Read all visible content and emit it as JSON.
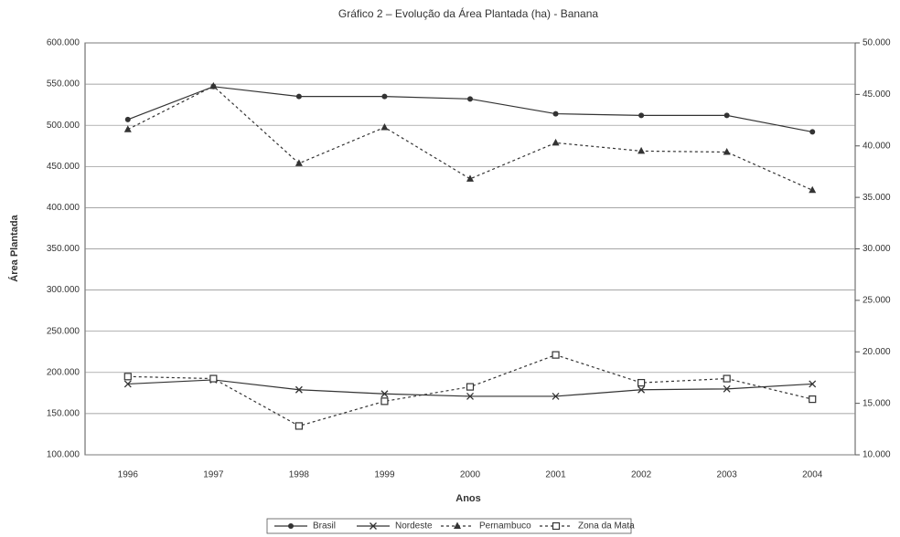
{
  "chart_data": {
    "type": "line",
    "title": "Gráfico 2 – Evolução da Área Plantada (ha) - Banana",
    "x_label": "Anos",
    "y_label": "Área Plantada",
    "categories": [
      "1996",
      "1997",
      "1998",
      "1999",
      "2000",
      "2001",
      "2002",
      "2003",
      "2004"
    ],
    "ylim": [
      100000,
      600000
    ],
    "yticks": [
      {
        "value": 100000,
        "label": "100.000"
      },
      {
        "value": 150000,
        "label": "150.000"
      },
      {
        "value": 200000,
        "label": "200.000"
      },
      {
        "value": 250000,
        "label": "250.000"
      },
      {
        "value": 300000,
        "label": "300.000"
      },
      {
        "value": 350000,
        "label": "350.000"
      },
      {
        "value": 400000,
        "label": "400.000"
      },
      {
        "value": 450000,
        "label": "450.000"
      },
      {
        "value": 500000,
        "label": "500.000"
      },
      {
        "value": 550000,
        "label": "550.000"
      },
      {
        "value": 600000,
        "label": "600.000"
      }
    ],
    "y2lim": [
      10000,
      50000
    ],
    "y2ticks": [
      {
        "value": 10000,
        "label": "10.000"
      },
      {
        "value": 15000,
        "label": "15.000"
      },
      {
        "value": 20000,
        "label": "20.000"
      },
      {
        "value": 25000,
        "label": "25.000"
      },
      {
        "value": 30000,
        "label": "30.000"
      },
      {
        "value": 35000,
        "label": "35.000"
      },
      {
        "value": 40000,
        "label": "40.000"
      },
      {
        "value": 45000,
        "label": "45.000"
      },
      {
        "value": 50000,
        "label": "50.000"
      }
    ],
    "grid": true,
    "series": [
      {
        "name": "Brasil",
        "color": "#333333",
        "marker": "circle",
        "dashed": false,
        "values": [
          507000,
          547000,
          535000,
          535000,
          532000,
          514000,
          512000,
          512000,
          492000
        ]
      },
      {
        "name": "Nordeste",
        "color": "#333333",
        "marker": "x",
        "dashed": false,
        "values": [
          186000,
          191000,
          179000,
          174000,
          171000,
          171000,
          179000,
          180000,
          186000
        ]
      },
      {
        "name": "Pernambuco",
        "color": "#333333",
        "marker": "triangle",
        "dashed": true,
        "axis": "y2",
        "values": [
          41600,
          45800,
          38300,
          41800,
          36800,
          40300,
          39500,
          39400,
          35700
        ]
      },
      {
        "name": "Zona da Mata",
        "color": "#333333",
        "marker": "square",
        "dashed": true,
        "axis": "y2",
        "values": [
          17600,
          17400,
          12800,
          15200,
          16600,
          19700,
          17000,
          17400,
          15400
        ]
      }
    ]
  }
}
